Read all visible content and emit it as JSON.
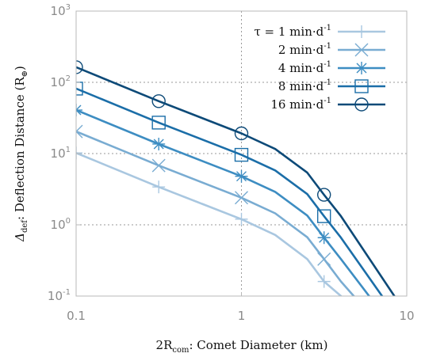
{
  "chart_data": {
    "type": "line",
    "xscale": "log",
    "yscale": "log",
    "xlim": [
      0.1,
      10
    ],
    "ylim": [
      0.1,
      1000
    ],
    "grid": true,
    "legend_position": "top-right",
    "xlabel": {
      "main": "2R",
      "sub": "com",
      "rest": ": Comet Diameter (km)"
    },
    "ylabel": {
      "main": "Δ",
      "sub": "def",
      "rest": ": Deflection Distance (R",
      "sub2": "⊕",
      "end": ")"
    },
    "x_ticks": [
      {
        "value": 0.1,
        "label": "0.1"
      },
      {
        "value": 1,
        "label": "1"
      },
      {
        "value": 10,
        "label": "10"
      }
    ],
    "y_ticks": [
      {
        "value": 0.1,
        "base": "10",
        "exp": "-1"
      },
      {
        "value": 1,
        "base": "10",
        "exp": "0"
      },
      {
        "value": 10,
        "base": "10",
        "exp": "1"
      },
      {
        "value": 100,
        "base": "10",
        "exp": "2"
      },
      {
        "value": 1000,
        "base": "10",
        "exp": "3"
      }
    ],
    "series": [
      {
        "name": "τ = 1 min·d",
        "name_sup": "-1",
        "color": "#a9c7e0",
        "marker": "plus",
        "x": [
          0.1,
          0.316,
          1,
          1.6,
          2.5,
          3.16,
          4,
          4.8
        ],
        "y": [
          10.2,
          3.4,
          1.2,
          0.72,
          0.33,
          0.16,
          0.1,
          0.055
        ],
        "marker_x": [
          0.1,
          0.316,
          1,
          3.16
        ],
        "marker_y": [
          10.2,
          3.4,
          1.2,
          0.16
        ]
      },
      {
        "name": "2 min·d",
        "name_sup": "-1",
        "color": "#79acd2",
        "marker": "x",
        "x": [
          0.1,
          0.316,
          1,
          1.6,
          2.5,
          3.16,
          4,
          6
        ],
        "y": [
          20.4,
          6.8,
          2.4,
          1.45,
          0.67,
          0.33,
          0.16,
          0.055
        ],
        "marker_x": [
          0.1,
          0.316,
          1,
          3.16
        ],
        "marker_y": [
          20.4,
          6.8,
          2.4,
          0.33
        ]
      },
      {
        "name": "4 min·d",
        "name_sup": "-1",
        "color": "#3d8dc2",
        "marker": "asterisk",
        "x": [
          0.1,
          0.316,
          1,
          1.6,
          2.5,
          3.16,
          4,
          7.2
        ],
        "y": [
          40.8,
          13.6,
          4.8,
          2.9,
          1.35,
          0.66,
          0.33,
          0.055
        ],
        "marker_x": [
          0.1,
          0.316,
          1,
          3.16
        ],
        "marker_y": [
          40.8,
          13.6,
          4.8,
          0.66
        ]
      },
      {
        "name": "8 min·d",
        "name_sup": "-1",
        "color": "#1b6ea8",
        "marker": "square",
        "x": [
          0.1,
          0.316,
          1,
          1.6,
          2.5,
          3.16,
          4,
          8.5
        ],
        "y": [
          81.6,
          27.2,
          9.6,
          5.8,
          2.7,
          1.32,
          0.66,
          0.055
        ],
        "marker_x": [
          0.1,
          0.316,
          1,
          3.16
        ],
        "marker_y": [
          81.6,
          27.2,
          9.6,
          1.32
        ]
      },
      {
        "name": "16 min·d",
        "name_sup": "-1",
        "color": "#0d4a78",
        "marker": "circle",
        "x": [
          0.1,
          0.316,
          1,
          1.6,
          2.5,
          3.16,
          4,
          10
        ],
        "y": [
          163,
          54.4,
          19.2,
          11.6,
          5.4,
          2.64,
          1.32,
          0.055
        ],
        "marker_x": [
          0.1,
          0.316,
          1,
          3.16
        ],
        "marker_y": [
          163,
          54.4,
          19.2,
          2.64
        ]
      }
    ]
  }
}
